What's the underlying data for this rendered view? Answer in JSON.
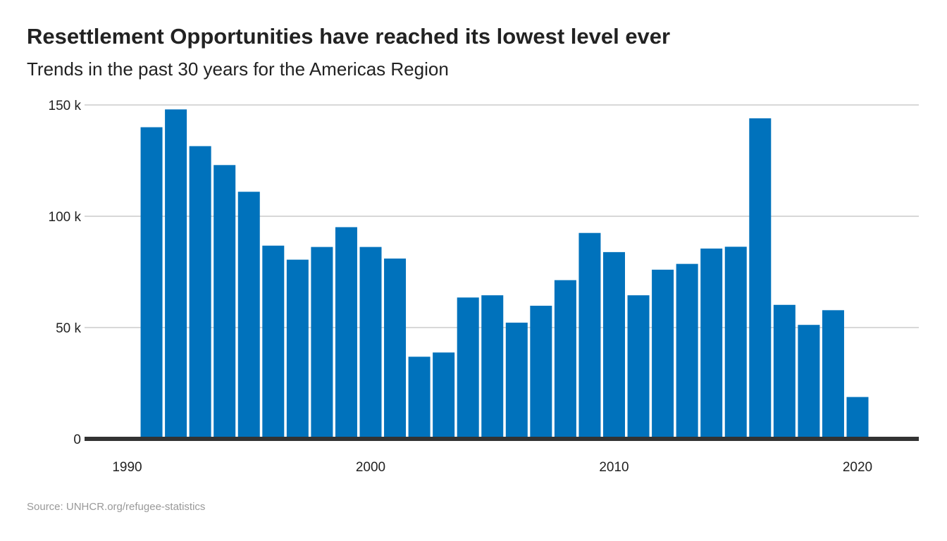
{
  "header": {
    "title": "Resettlement Opportunities have reached its lowest level ever",
    "subtitle": "Trends in the past 30 years for the Americas Region"
  },
  "footer": {
    "source": "Source: UNHCR.org/refugee-statistics"
  },
  "colors": {
    "bar": "#0072bc",
    "gridline": "#cccccc",
    "baseline": "#333333"
  },
  "chart_data": {
    "type": "bar",
    "categories": [
      1991,
      1992,
      1993,
      1994,
      1995,
      1996,
      1997,
      1998,
      1999,
      2000,
      2001,
      2002,
      2003,
      2004,
      2005,
      2006,
      2007,
      2008,
      2009,
      2010,
      2011,
      2012,
      2013,
      2014,
      2015,
      2016,
      2017,
      2018,
      2019,
      2020
    ],
    "values": [
      140000,
      148000,
      131500,
      123000,
      111000,
      86800,
      80500,
      86200,
      95100,
      86200,
      81000,
      36900,
      38800,
      63500,
      64500,
      52200,
      59800,
      71300,
      92500,
      83900,
      64500,
      76000,
      78600,
      85500,
      86300,
      144000,
      60200,
      51200,
      57800,
      18800
    ],
    "ylim": [
      0,
      150000
    ],
    "xlim": [
      1988.5,
      1992.5
    ],
    "yticks": [
      {
        "value": 0,
        "label": "0"
      },
      {
        "value": 50000,
        "label": "50 k"
      },
      {
        "value": 100000,
        "label": "100 k"
      },
      {
        "value": 150000,
        "label": "150 k"
      }
    ],
    "xticks": [
      {
        "value": 1990,
        "label": "1990"
      },
      {
        "value": 2000,
        "label": "2000"
      },
      {
        "value": 2010,
        "label": "2010"
      },
      {
        "value": 2020,
        "label": "2020"
      }
    ],
    "grid": true,
    "legend": "none"
  }
}
